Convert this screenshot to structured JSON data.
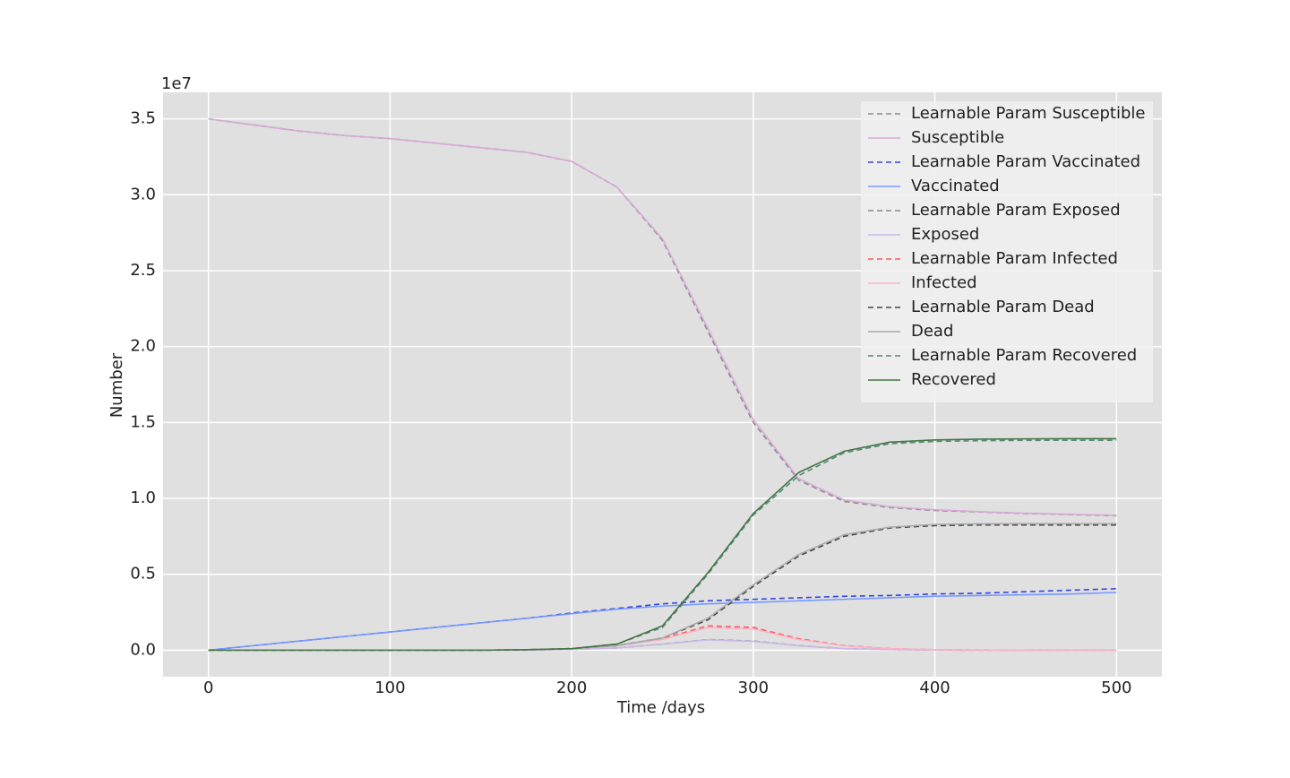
{
  "chart_data": {
    "type": "line",
    "x_label": "Time /days",
    "y_label": "Number",
    "y_offset_label": "1e7",
    "xlim": [
      -25,
      525
    ],
    "ylim": [
      -0.175,
      3.675
    ],
    "xticks": [
      0,
      100,
      200,
      300,
      400,
      500
    ],
    "yticks": [
      {
        "value": 0,
        "label": "0.0"
      },
      0.5,
      {
        "value": 1,
        "label": "1.0"
      },
      1.5,
      {
        "value": 2,
        "label": "2.0"
      },
      2.5,
      {
        "value": 3,
        "label": "3.0"
      },
      3.5
    ],
    "grid": true,
    "legend": "upper right",
    "x": [
      0,
      25,
      50,
      75,
      100,
      125,
      150,
      175,
      200,
      225,
      250,
      275,
      300,
      325,
      350,
      375,
      400,
      425,
      450,
      475,
      500
    ],
    "series": [
      {
        "name": "Learnable Param Susceptible",
        "color": "#8c8c8c",
        "dashed": true,
        "values": [
          3.5,
          3.46,
          3.42,
          3.39,
          3.37,
          3.34,
          3.31,
          3.28,
          3.22,
          3.05,
          2.7,
          2.1,
          1.5,
          1.12,
          0.98,
          0.94,
          0.92,
          0.91,
          0.9,
          0.893,
          0.885
        ]
      },
      {
        "name": "Susceptible",
        "color": "#d8a8d8",
        "dashed": false,
        "values": [
          3.5,
          3.46,
          3.42,
          3.39,
          3.37,
          3.34,
          3.31,
          3.28,
          3.22,
          3.05,
          2.71,
          2.12,
          1.52,
          1.13,
          0.99,
          0.945,
          0.925,
          0.912,
          0.902,
          0.895,
          0.888
        ]
      },
      {
        "name": "Learnable Param Vaccinated",
        "color": "#3344dd",
        "dashed": true,
        "values": [
          0,
          0.03,
          0.06,
          0.09,
          0.12,
          0.15,
          0.18,
          0.21,
          0.245,
          0.275,
          0.305,
          0.325,
          0.335,
          0.345,
          0.355,
          0.36,
          0.37,
          0.375,
          0.385,
          0.395,
          0.405
        ]
      },
      {
        "name": "Vaccinated",
        "color": "#7799ff",
        "dashed": false,
        "values": [
          0,
          0.03,
          0.06,
          0.09,
          0.12,
          0.15,
          0.18,
          0.21,
          0.24,
          0.27,
          0.29,
          0.305,
          0.315,
          0.325,
          0.335,
          0.345,
          0.355,
          0.36,
          0.365,
          0.37,
          0.38
        ]
      },
      {
        "name": "Learnable Param Exposed",
        "color": "#888888",
        "dashed": true,
        "values": [
          0,
          0,
          0,
          0,
          0,
          0,
          0,
          0,
          0.005,
          0.015,
          0.04,
          0.07,
          0.06,
          0.03,
          0.01,
          0.004,
          0.001,
          0,
          0,
          0,
          0
        ]
      },
      {
        "name": "Exposed",
        "color": "#c8b8e8",
        "dashed": false,
        "values": [
          0,
          0,
          0,
          0,
          0,
          0,
          0,
          0,
          0.005,
          0.015,
          0.04,
          0.068,
          0.058,
          0.03,
          0.01,
          0.004,
          0.001,
          0,
          0,
          0,
          0
        ]
      },
      {
        "name": "Learnable Param Infected",
        "color": "#ff5555",
        "dashed": true,
        "values": [
          0,
          0,
          0,
          0,
          0,
          0,
          0,
          0.002,
          0.01,
          0.03,
          0.075,
          0.16,
          0.15,
          0.075,
          0.03,
          0.01,
          0.003,
          0.001,
          0,
          0,
          0
        ]
      },
      {
        "name": "Infected",
        "color": "#ffb0c8",
        "dashed": false,
        "values": [
          0,
          0,
          0,
          0,
          0,
          0,
          0,
          0.002,
          0.01,
          0.03,
          0.07,
          0.15,
          0.14,
          0.07,
          0.028,
          0.01,
          0.003,
          0.001,
          0,
          0,
          0
        ]
      },
      {
        "name": "Learnable Param Dead",
        "color": "#444444",
        "dashed": true,
        "values": [
          0,
          0,
          0,
          0,
          0,
          0,
          0,
          0.002,
          0.01,
          0.03,
          0.08,
          0.2,
          0.42,
          0.62,
          0.75,
          0.805,
          0.82,
          0.825,
          0.825,
          0.825,
          0.825
        ]
      },
      {
        "name": "Dead",
        "color": "#aaaaaa",
        "dashed": false,
        "values": [
          0,
          0,
          0,
          0,
          0,
          0,
          0,
          0.002,
          0.01,
          0.03,
          0.08,
          0.21,
          0.43,
          0.63,
          0.76,
          0.81,
          0.828,
          0.832,
          0.833,
          0.833,
          0.833
        ]
      },
      {
        "name": "Learnable Param Recovered",
        "color": "#558877",
        "dashed": true,
        "values": [
          0,
          0,
          0,
          0,
          0,
          0,
          0,
          0.003,
          0.01,
          0.04,
          0.15,
          0.5,
          0.89,
          1.15,
          1.3,
          1.36,
          1.375,
          1.38,
          1.382,
          1.383,
          1.383
        ]
      },
      {
        "name": "Recovered",
        "color": "#447744",
        "dashed": false,
        "values": [
          0,
          0,
          0,
          0,
          0,
          0,
          0,
          0.003,
          0.01,
          0.04,
          0.16,
          0.51,
          0.9,
          1.17,
          1.31,
          1.37,
          1.385,
          1.39,
          1.392,
          1.393,
          1.393
        ]
      }
    ]
  }
}
